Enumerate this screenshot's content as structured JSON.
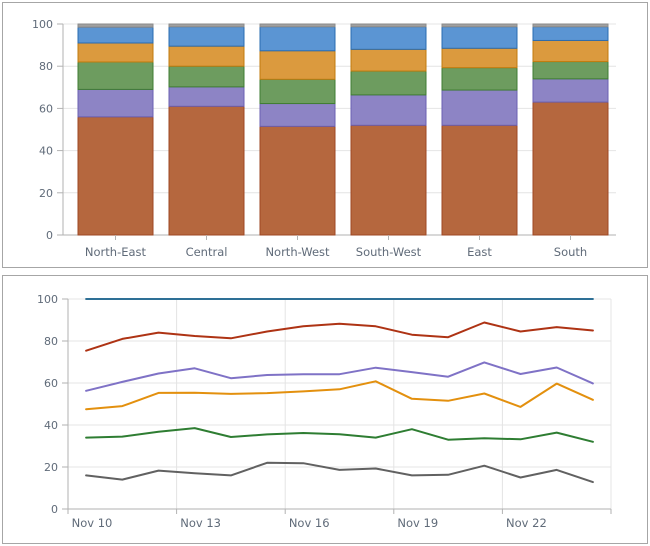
{
  "page": {
    "background": "#ffffff",
    "panel_border_color": "#a6a6a6",
    "axis_line_color": "#b2b2b2",
    "grid_color": "#e4e4e4",
    "label_color": "#606b79"
  },
  "chart_data": [
    {
      "type": "bar",
      "stacked": true,
      "percent_axis": true,
      "categories": [
        "North-East",
        "Central",
        "North-West",
        "South-West",
        "East",
        "South"
      ],
      "series": [
        {
          "name": "series-sienna",
          "fill": "#b5673e",
          "stroke": "#9e4723",
          "values": [
            56,
            61,
            51.5,
            52,
            52,
            63
          ]
        },
        {
          "name": "series-purple",
          "fill": "#8d84c5",
          "stroke": "#6a5fb2",
          "values": [
            13,
            9.2,
            10.8,
            14.4,
            16.7,
            11
          ]
        },
        {
          "name": "series-green",
          "fill": "#6d9c5f",
          "stroke": "#3f7d33",
          "values": [
            13,
            9.8,
            11.5,
            11.3,
            10.6,
            8.2
          ]
        },
        {
          "name": "series-orange",
          "fill": "#db9a3e",
          "stroke": "#c07b0e",
          "values": [
            9,
            9.5,
            13.5,
            10.3,
            9.2,
            10
          ]
        },
        {
          "name": "series-blue",
          "fill": "#5b95d3",
          "stroke": "#2a6cb0",
          "values": [
            7.5,
            9.2,
            11.4,
            10.7,
            10.2,
            6.5
          ]
        },
        {
          "name": "series-gray",
          "fill": "#a0a0a0",
          "stroke": "#8a8a8a",
          "values": [
            1.5,
            1.3,
            1.3,
            1.3,
            1.3,
            1.3
          ]
        }
      ],
      "ylim": [
        0,
        100
      ],
      "yticks": [
        0,
        20,
        40,
        60,
        80,
        100
      ],
      "grid": true,
      "legend": "none"
    },
    {
      "type": "line",
      "x": [
        "Nov 10",
        "Nov 11",
        "Nov 12",
        "Nov 13",
        "Nov 14",
        "Nov 15",
        "Nov 16",
        "Nov 17",
        "Nov 18",
        "Nov 19",
        "Nov 20",
        "Nov 21",
        "Nov 22",
        "Nov 23",
        "Nov 24"
      ],
      "x_tick_labels": [
        "Nov 10",
        "Nov 13",
        "Nov 16",
        "Nov 19",
        "Nov 22"
      ],
      "tick_every": 3,
      "series": [
        {
          "name": "line-blue",
          "color": "#2e7096",
          "values": [
            100,
            100,
            100,
            100,
            100,
            100,
            100,
            100,
            100,
            100,
            100,
            100,
            100,
            100,
            100
          ]
        },
        {
          "name": "line-red",
          "color": "#ae3314",
          "values": [
            75.4,
            81,
            84,
            82.4,
            81.3,
            84.5,
            87,
            88.2,
            87,
            83,
            81.8,
            88.8,
            84.5,
            86.6,
            85
          ]
        },
        {
          "name": "line-purple",
          "color": "#7f72c6",
          "values": [
            56.3,
            60.5,
            64.5,
            67,
            62.3,
            63.8,
            64.2,
            64.2,
            67.3,
            65.2,
            63,
            69.8,
            64.3,
            67.4,
            59.8
          ]
        },
        {
          "name": "line-orange",
          "color": "#e3900e",
          "values": [
            47.5,
            49,
            55.3,
            55.4,
            54.8,
            55.2,
            56,
            57,
            60.8,
            52.5,
            51.5,
            55,
            48.6,
            59.7,
            52
          ]
        },
        {
          "name": "line-green",
          "color": "#2e7d32",
          "values": [
            34,
            34.5,
            36.8,
            38.5,
            34.3,
            35.5,
            36.2,
            35.6,
            34,
            38,
            33,
            33.7,
            33.2,
            36.4,
            32
          ]
        },
        {
          "name": "line-gray",
          "color": "#616161",
          "values": [
            16,
            14,
            18.3,
            17,
            16,
            22,
            21.8,
            18.6,
            19.3,
            16,
            16.3,
            20.6,
            15,
            18.6,
            12.8
          ]
        }
      ],
      "ylim": [
        0,
        100
      ],
      "yticks": [
        0,
        20,
        40,
        60,
        80,
        100
      ],
      "grid": true,
      "legend": "none"
    }
  ]
}
